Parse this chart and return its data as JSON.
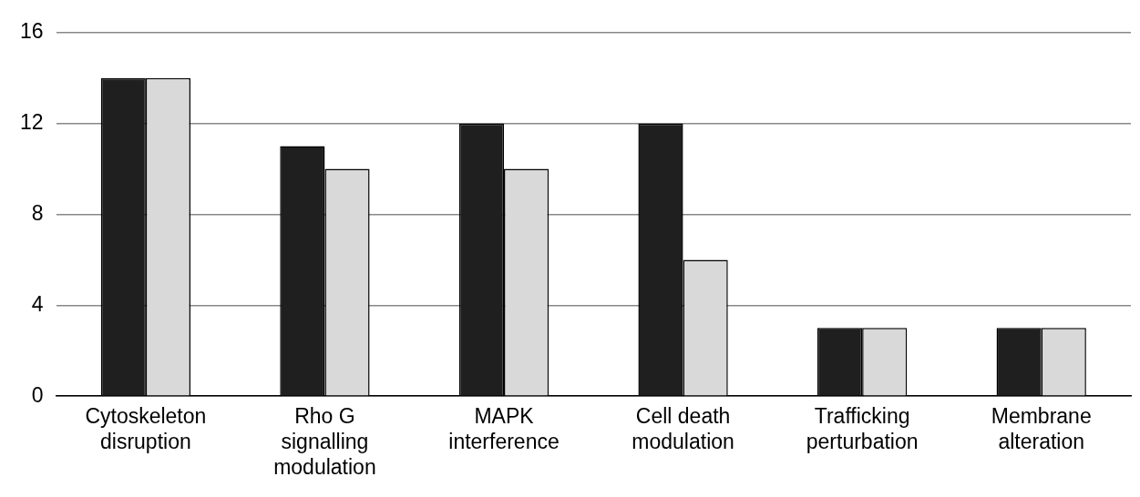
{
  "chart_data": {
    "type": "bar",
    "categories": [
      "Cytoskeleton disruption",
      "Rho G signalling modulation",
      "MAPK interference",
      "Cell death modulation",
      "Trafficking perturbation",
      "Membrane alteration"
    ],
    "series": [
      {
        "color": "#1f1f1f",
        "values": [
          14,
          11,
          12,
          12,
          3,
          3
        ]
      },
      {
        "color": "#d9d9d9",
        "values": [
          14,
          10,
          10,
          6,
          3,
          3
        ]
      }
    ],
    "ylim": [
      0,
      16
    ],
    "yticks": [
      0,
      4,
      8,
      12,
      16
    ],
    "grid": "y",
    "legend": false
  }
}
